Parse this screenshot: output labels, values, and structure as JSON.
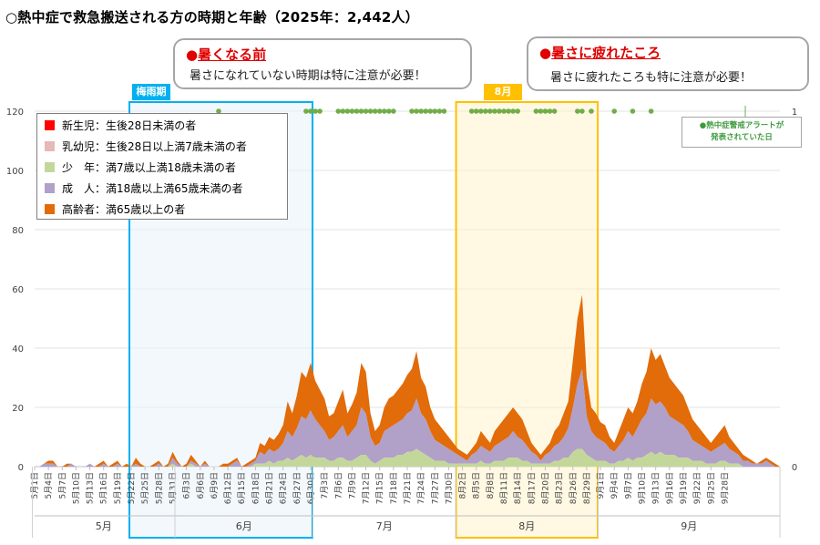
{
  "title": "○熱中症で救急搬送される方の時期と年齢（2025年：2,442人）",
  "callouts": {
    "early": {
      "title": "暑くなる前",
      "text": "暑さになれていない時期は特に注意が必要！"
    },
    "late": {
      "title": "暑さに疲れたころ",
      "text": "暑さに疲れたころも特に注意が必要！"
    }
  },
  "season_labels": {
    "rainy": "梅雨期",
    "august": "8月"
  },
  "alert_note": {
    "line1": "●熱中症警戒アラートが",
    "line2": "発表されていた日"
  },
  "colors": {
    "newborn": "#ff0000",
    "infant": "#e6b8b7",
    "youth": "#c4d79b",
    "adult": "#b1a0c7",
    "elderly": "#e26b0a",
    "rainy_box": "#00b0f0",
    "august_box": "#ffc000",
    "alert_dot": "#70ad47"
  },
  "chart_data": {
    "type": "area",
    "stacked": true,
    "title": "○熱中症で救急搬送される方の時期と年齢（2025年：2,442人）",
    "y_left": {
      "min": 0,
      "max": 120,
      "ticks": [
        "0",
        "20",
        "40",
        "60",
        "80",
        "100",
        "120"
      ]
    },
    "y_right": {
      "min": 0,
      "max": 1,
      "ticks": [
        "0",
        "1"
      ]
    },
    "x_start": "2025-05-01",
    "x_end": "2025-09-30",
    "x_tick_labels": [
      "5月1日",
      "5月4日",
      "5月7日",
      "5月10日",
      "5月13日",
      "5月16日",
      "5月19日",
      "5月22日",
      "5月25日",
      "5月28日",
      "5月31日",
      "6月3日",
      "6月6日",
      "6月9日",
      "6月12日",
      "6月15日",
      "6月18日",
      "6月21日",
      "6月24日",
      "6月27日",
      "6月30日",
      "7月3日",
      "7月6日",
      "7月9日",
      "7月12日",
      "7月15日",
      "7月18日",
      "7月21日",
      "7月24日",
      "7月27日",
      "7月30日",
      "8月2日",
      "8月5日",
      "8月8日",
      "8月11日",
      "8月14日",
      "8月17日",
      "8月20日",
      "8月23日",
      "8月26日",
      "8月29日",
      "9月1日",
      "9月4日",
      "9月7日",
      "9月10日",
      "9月13日",
      "9月16日",
      "9月19日",
      "9月22日",
      "9月25日",
      "9月28日"
    ],
    "month_labels": [
      "5月",
      "6月",
      "7月",
      "8月",
      "9月"
    ],
    "legend": [
      {
        "key": "newborn",
        "label": "新生児：生後28日未満の者"
      },
      {
        "key": "infant",
        "label": "乳幼児：生後28日以上満7歳未満の者"
      },
      {
        "key": "youth",
        "label": "少　年：満7歳以上満18歳未満の者"
      },
      {
        "key": "adult",
        "label": "成　人：満18歳以上満65歳未満の者"
      },
      {
        "key": "elderly",
        "label": "高齢者：満65歳以上の者"
      }
    ],
    "series": {
      "total": [
        0,
        0,
        1,
        2,
        2,
        0,
        0,
        1,
        1,
        0,
        0,
        0,
        1,
        0,
        1,
        2,
        0,
        1,
        2,
        0,
        1,
        0,
        3,
        1,
        0,
        0,
        1,
        2,
        0,
        1,
        5,
        2,
        0,
        1,
        4,
        2,
        0,
        2,
        0,
        0,
        0,
        1,
        1,
        2,
        3,
        0,
        1,
        2,
        3,
        8,
        7,
        10,
        9,
        11,
        14,
        22,
        18,
        24,
        32,
        30,
        35,
        29,
        26,
        23,
        17,
        18,
        22,
        26,
        18,
        21,
        25,
        35,
        32,
        18,
        12,
        14,
        20,
        23,
        24,
        26,
        28,
        31,
        33,
        39,
        30,
        27,
        20,
        16,
        14,
        12,
        10,
        8,
        6,
        5,
        4,
        6,
        8,
        12,
        10,
        8,
        12,
        14,
        16,
        18,
        20,
        18,
        16,
        12,
        8,
        6,
        4,
        6,
        8,
        12,
        14,
        18,
        22,
        36,
        50,
        58,
        30,
        20,
        18,
        15,
        14,
        10,
        8,
        12,
        16,
        20,
        18,
        22,
        28,
        32,
        40,
        36,
        38,
        34,
        30,
        28,
        26,
        24,
        20,
        16,
        14,
        12,
        10,
        8,
        10,
        12,
        14,
        10,
        8,
        6,
        4,
        3,
        2,
        1,
        2,
        3,
        2,
        1,
        0
      ],
      "adult_top": [
        0,
        0,
        1,
        1,
        1,
        0,
        0,
        0,
        1,
        0,
        0,
        0,
        1,
        0,
        0,
        1,
        0,
        0,
        1,
        0,
        0,
        0,
        1,
        0,
        0,
        0,
        0,
        1,
        0,
        0,
        3,
        1,
        0,
        0,
        2,
        1,
        0,
        1,
        0,
        0,
        0,
        0,
        0,
        1,
        2,
        0,
        0,
        1,
        2,
        5,
        4,
        6,
        5,
        6,
        8,
        12,
        10,
        13,
        17,
        16,
        19,
        16,
        14,
        12,
        9,
        10,
        12,
        14,
        10,
        12,
        14,
        20,
        18,
        10,
        7,
        8,
        12,
        13,
        14,
        15,
        16,
        18,
        19,
        23,
        18,
        16,
        12,
        9,
        8,
        7,
        6,
        5,
        4,
        3,
        2,
        4,
        5,
        7,
        6,
        5,
        7,
        8,
        9,
        10,
        12,
        10,
        9,
        7,
        5,
        4,
        2,
        4,
        5,
        7,
        8,
        10,
        13,
        20,
        28,
        33,
        17,
        12,
        10,
        9,
        8,
        6,
        5,
        7,
        9,
        12,
        10,
        13,
        16,
        18,
        23,
        21,
        22,
        20,
        17,
        16,
        15,
        14,
        12,
        9,
        8,
        7,
        6,
        5,
        6,
        7,
        8,
        6,
        5,
        4,
        2,
        2,
        1,
        1,
        1,
        2,
        1,
        0,
        0
      ],
      "youth_top": [
        0,
        0,
        0,
        0,
        0,
        0,
        0,
        0,
        0,
        0,
        0,
        0,
        0,
        0,
        0,
        0,
        0,
        0,
        0,
        0,
        0,
        0,
        0,
        0,
        0,
        0,
        0,
        0,
        0,
        0,
        1,
        0,
        0,
        0,
        1,
        0,
        0,
        0,
        0,
        0,
        0,
        0,
        0,
        0,
        0,
        0,
        0,
        0,
        1,
        1,
        1,
        2,
        1,
        2,
        2,
        3,
        2,
        3,
        4,
        3,
        4,
        3,
        3,
        3,
        2,
        2,
        3,
        3,
        2,
        2,
        3,
        4,
        4,
        2,
        1,
        2,
        3,
        3,
        3,
        4,
        4,
        5,
        5,
        6,
        5,
        4,
        3,
        2,
        2,
        2,
        1,
        1,
        1,
        1,
        1,
        1,
        1,
        2,
        1,
        1,
        2,
        2,
        2,
        3,
        3,
        3,
        2,
        2,
        1,
        1,
        1,
        1,
        1,
        2,
        2,
        3,
        3,
        5,
        6,
        6,
        4,
        3,
        2,
        2,
        2,
        1,
        1,
        2,
        2,
        3,
        2,
        3,
        3,
        4,
        5,
        4,
        5,
        4,
        4,
        4,
        3,
        3,
        3,
        2,
        2,
        2,
        1,
        1,
        1,
        2,
        2,
        1,
        1,
        1,
        0,
        0,
        0,
        0,
        0,
        0,
        0,
        0,
        0
      ]
    },
    "alert_day_indices": [
      40,
      59,
      60,
      61,
      62,
      66,
      67,
      68,
      69,
      70,
      71,
      72,
      73,
      74,
      75,
      76,
      77,
      78,
      82,
      83,
      84,
      85,
      86,
      87,
      88,
      89,
      95,
      96,
      97,
      98,
      99,
      100,
      101,
      102,
      103,
      104,
      105,
      109,
      110,
      111,
      112,
      113,
      118,
      119,
      121,
      126,
      130,
      134
    ]
  }
}
